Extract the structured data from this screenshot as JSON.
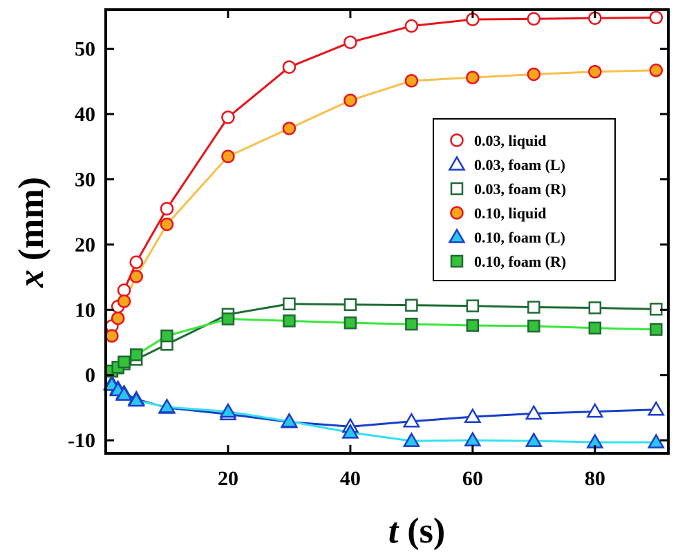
{
  "chart_data": {
    "type": "line",
    "title": "",
    "xlabel": {
      "var": "t",
      "unit": " (s)"
    },
    "ylabel": {
      "var": "x",
      "unit": " (mm)"
    },
    "xlim": [
      0,
      92
    ],
    "ylim": [
      -12,
      56
    ],
    "xticks": [
      20,
      40,
      60,
      80
    ],
    "xtick_labels": [
      "20",
      "40",
      "60",
      "80"
    ],
    "yticks": [
      -10,
      0,
      10,
      20,
      30,
      40,
      50
    ],
    "ytick_labels": [
      "-10",
      "0",
      "10",
      "20",
      "30",
      "40",
      "50"
    ],
    "grid": false,
    "legend_position": "right",
    "series": [
      {
        "name": "0.03, liquid",
        "marker": "circle",
        "filled": false,
        "line_color": "#e8141b",
        "marker_fill": "#ffffff",
        "marker_edge": "#e8141b",
        "x": [
          1,
          2,
          3,
          5,
          10,
          20,
          30,
          40,
          50,
          60,
          70,
          80,
          90
        ],
        "y": [
          7.5,
          10.5,
          13,
          17.3,
          25.5,
          39.5,
          47.2,
          51,
          53.5,
          54.5,
          54.6,
          54.7,
          54.8
        ]
      },
      {
        "name": "0.03, foam (L)",
        "marker": "triangle",
        "filled": false,
        "line_color": "#1a3ec8",
        "marker_fill": "#ffffff",
        "marker_edge": "#1a3ec8",
        "x": [
          1,
          2,
          3,
          5,
          10,
          20,
          30,
          40,
          50,
          60,
          70,
          80,
          90
        ],
        "y": [
          -1.3,
          -2.1,
          -2.8,
          -3.7,
          -5,
          -6,
          -7.2,
          -7.9,
          -7.1,
          -6.4,
          -5.9,
          -5.6,
          -5.3
        ]
      },
      {
        "name": "0.03, foam (R)",
        "marker": "square",
        "filled": false,
        "line_color": "#1e6b34",
        "marker_fill": "#ffffff",
        "marker_edge": "#1e6b34",
        "x": [
          1,
          2,
          3,
          5,
          10,
          20,
          30,
          40,
          50,
          60,
          70,
          80,
          90
        ],
        "y": [
          0.6,
          1.1,
          1.7,
          2.4,
          4.7,
          9.3,
          10.9,
          10.8,
          10.7,
          10.6,
          10.4,
          10.3,
          10.1
        ]
      },
      {
        "name": "0.10, liquid",
        "marker": "circle",
        "filled": true,
        "line_color": "#f7c04a",
        "marker_fill": "#f7a51d",
        "marker_edge": "#e8141b",
        "x": [
          1,
          2,
          3,
          5,
          10,
          20,
          30,
          40,
          50,
          60,
          70,
          80,
          90
        ],
        "y": [
          6,
          8.7,
          11.3,
          15.1,
          23.1,
          33.5,
          37.8,
          42.1,
          45.1,
          45.6,
          46.1,
          46.5,
          46.7
        ]
      },
      {
        "name": "0.10, foam (L)",
        "marker": "triangle",
        "filled": true,
        "line_color": "#35e0f0",
        "marker_fill": "#29c6ef",
        "marker_edge": "#1a3ec8",
        "x": [
          1,
          2,
          3,
          5,
          10,
          20,
          30,
          40,
          50,
          60,
          70,
          80,
          90
        ],
        "y": [
          -1.5,
          -2.3,
          -3,
          -3.9,
          -4.9,
          -5.6,
          -7.1,
          -8.8,
          -10.1,
          -10,
          -10.1,
          -10.3,
          -10.3
        ]
      },
      {
        "name": "0.10, foam (R)",
        "marker": "square",
        "filled": true,
        "line_color": "#39e63a",
        "marker_fill": "#33c23a",
        "marker_edge": "#1e6b34",
        "x": [
          1,
          2,
          3,
          5,
          10,
          20,
          30,
          40,
          50,
          60,
          70,
          80,
          90
        ],
        "y": [
          0.6,
          1.2,
          2,
          3.1,
          6,
          8.6,
          8.3,
          8,
          7.8,
          7.6,
          7.5,
          7.2,
          7
        ]
      }
    ]
  }
}
